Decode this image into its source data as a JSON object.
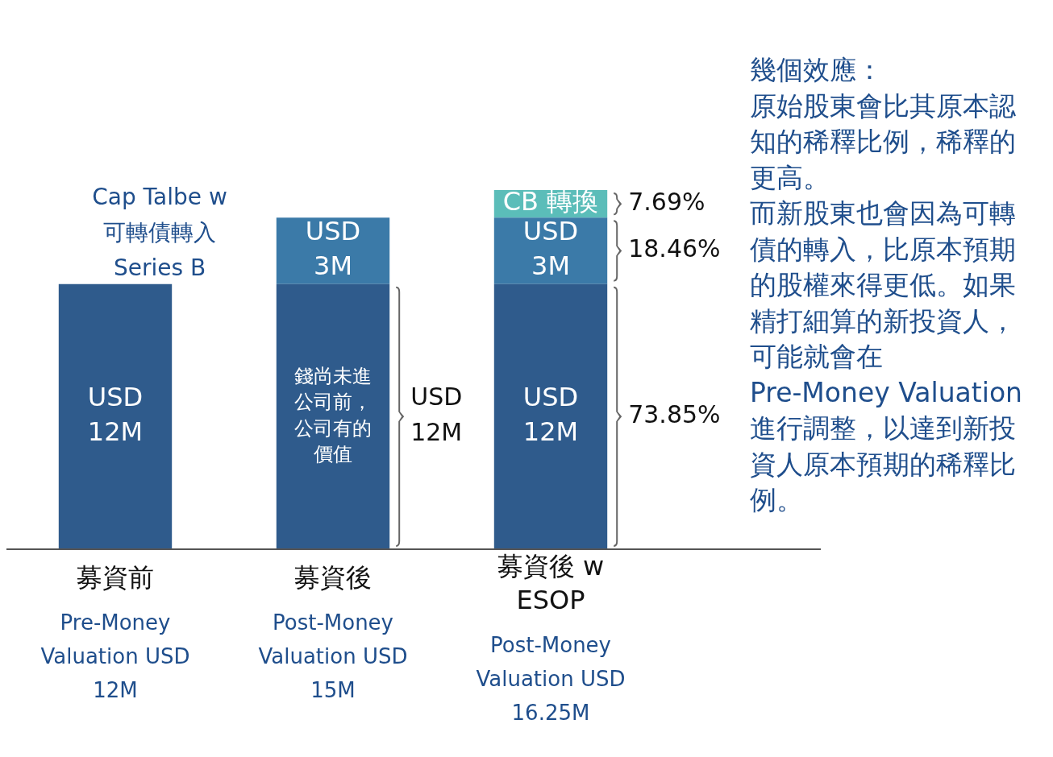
{
  "chart_data": {
    "type": "bar",
    "title": "Cap Talbe w 可轉債轉入 Series B",
    "categories": [
      "募資前",
      "募資後",
      "募資後 w ESOP"
    ],
    "stacked": true,
    "legend": false,
    "tick_labels": "x",
    "series": [
      {
        "color": "#2f5b8c",
        "values": [
          12000000,
          12000000,
          12000000
        ],
        "value_labels": [
          "USD 12M",
          "錢尚未進公司前，公司有的價值",
          "USD 12M"
        ]
      },
      {
        "color": "#3b7aa8",
        "values": [
          null,
          3000000,
          3000000
        ],
        "value_labels": [
          null,
          "USD 3M",
          "USD 3M"
        ]
      },
      {
        "color": "#5bbdb9",
        "values": [
          null,
          null,
          1250000
        ],
        "value_labels": [
          null,
          null,
          "CB 轉換"
        ]
      }
    ],
    "annotations": [
      "Pre-Money Valuation USD 12M",
      "Post-Money Valuation USD 15M",
      "Post-Money Valuation USD 16.25M",
      "USD 12M",
      "7.69%",
      "18.46%",
      "73.85%",
      "幾個效應：",
      "原始股東會比其原本認知的稀釋比例，稀釋的更高。",
      "而新股東也會因為可轉債的轉入，比原本預期的股權來得更低。如果精打細算的新投資人，可能就會在 Pre-Money Valuation 進行調整，以達到新投資人原本預期的稀釋比例。"
    ]
  }
}
